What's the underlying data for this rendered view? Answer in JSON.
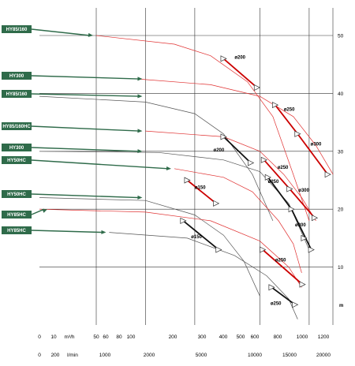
{
  "chart_data": {
    "type": "line",
    "title": "",
    "xlabel": "",
    "ylabel": "",
    "y_unit": "m",
    "x_unit_m3h": "m³/h",
    "x_unit_lmin": "l/min",
    "x_scale": "log",
    "xlim": [
      10,
      1400
    ],
    "ylim": [
      0,
      55
    ],
    "grid": true,
    "x_ticks_m3h": [
      "0",
      "10",
      "m³/h",
      "50",
      "60",
      "80",
      "100",
      "200",
      "300",
      "400",
      "500",
      "600",
      "800",
      "1000",
      "1200"
    ],
    "x_ticks_lmin": [
      "0",
      "200",
      "l/min",
      "1000",
      "2000",
      "5000",
      "10000",
      "15000",
      "20000"
    ],
    "y_ticks": [
      "10",
      "20",
      "30",
      "40",
      "50"
    ],
    "model_tags": [
      {
        "label": "HY85/160",
        "start_y": 50,
        "arrow_x": 50
      },
      {
        "label": "HY300",
        "start_y": 42.5,
        "arrow_x": 100
      },
      {
        "label": "HY85/160",
        "start_y": 39.5,
        "arrow_x": 100
      },
      {
        "label": "HY85/160HC",
        "start_y": 33.5,
        "arrow_x": 100
      },
      {
        "label": "HY300",
        "start_y": 30,
        "arrow_x": 100
      },
      {
        "label": "HY50HC",
        "start_y": 27,
        "arrow_x": 150
      },
      {
        "label": "HY50HC",
        "start_y": 22,
        "arrow_x": 100
      },
      {
        "label": "HY85HC",
        "start_y": 20,
        "arrow_x": 10
      },
      {
        "label": "HY85HC",
        "start_y": 16,
        "arrow_x": 60
      }
    ],
    "series": [
      {
        "color": "#e03030",
        "dim": "",
        "points": [
          [
            50,
            50
          ],
          [
            150,
            48.5
          ],
          [
            250,
            46.5
          ],
          [
            420,
            42
          ],
          [
            600,
            36
          ],
          [
            800,
            26
          ],
          [
            1000,
            18
          ]
        ]
      },
      {
        "color": "#e03030",
        "dim": "",
        "points": [
          [
            90,
            42.5
          ],
          [
            250,
            41.5
          ],
          [
            500,
            39.5
          ],
          [
            800,
            36
          ],
          [
            1100,
            31
          ],
          [
            1400,
            26
          ]
        ]
      },
      {
        "color": "#555555",
        "dim": "",
        "points": [
          [
            10,
            39.5
          ],
          [
            100,
            38.5
          ],
          [
            200,
            36.5
          ],
          [
            300,
            33
          ],
          [
            450,
            26
          ],
          [
            600,
            18
          ]
        ]
      },
      {
        "color": "#e03030",
        "dim": "",
        "points": [
          [
            100,
            33.5
          ],
          [
            300,
            32.5
          ],
          [
            500,
            30
          ],
          [
            700,
            26
          ],
          [
            900,
            22
          ],
          [
            1100,
            18
          ]
        ]
      },
      {
        "color": "#555555",
        "dim": "",
        "points": [
          [
            10,
            30
          ],
          [
            120,
            29.8
          ],
          [
            300,
            28.5
          ],
          [
            500,
            26.5
          ],
          [
            750,
            21
          ],
          [
            1000,
            13
          ]
        ]
      },
      {
        "color": "#e03030",
        "dim": "",
        "points": [
          [
            150,
            27
          ],
          [
            300,
            25.5
          ],
          [
            450,
            23
          ],
          [
            650,
            18
          ],
          [
            800,
            14
          ],
          [
            900,
            9
          ]
        ]
      },
      {
        "color": "#555555",
        "dim": "",
        "points": [
          [
            10,
            22
          ],
          [
            100,
            21.5
          ],
          [
            200,
            19
          ],
          [
            300,
            15.5
          ],
          [
            400,
            11
          ],
          [
            500,
            5
          ]
        ]
      },
      {
        "color": "#e03030",
        "dim": "",
        "points": [
          [
            10,
            20
          ],
          [
            100,
            19.5
          ],
          [
            250,
            18
          ],
          [
            500,
            14.5
          ],
          [
            750,
            10
          ],
          [
            900,
            6.5
          ]
        ]
      },
      {
        "color": "#555555",
        "dim": "",
        "points": [
          [
            60,
            16
          ],
          [
            180,
            15
          ],
          [
            350,
            12
          ],
          [
            550,
            8.5
          ],
          [
            750,
            4.5
          ],
          [
            850,
            1
          ]
        ]
      }
    ],
    "highlights": [
      {
        "color": "#cc0000",
        "points": [
          [
            300,
            46
          ],
          [
            480,
            41
          ]
        ]
      },
      {
        "color": "#cc0000",
        "points": [
          [
            620,
            38
          ],
          [
            850,
            33
          ],
          [
            1300,
            26
          ]
        ]
      },
      {
        "color": "#111111",
        "points": [
          [
            300,
            32.5
          ],
          [
            440,
            28
          ]
        ]
      },
      {
        "color": "#cc0000",
        "points": [
          [
            530,
            28.5
          ],
          [
            760,
            23.5
          ],
          [
            1080,
            18.5
          ]
        ]
      },
      {
        "color": "#111111",
        "points": [
          [
            560,
            25.5
          ],
          [
            780,
            20
          ],
          [
            1030,
            13
          ]
        ]
      },
      {
        "color": "#cc0000",
        "points": [
          [
            180,
            25
          ],
          [
            270,
            21
          ]
        ]
      },
      {
        "color": "#111111",
        "points": [
          [
            170,
            18
          ],
          [
            280,
            13
          ]
        ]
      },
      {
        "color": "#cc0000",
        "points": [
          [
            520,
            13
          ],
          [
            910,
            7
          ]
        ]
      },
      {
        "color": "#111111",
        "points": [
          [
            590,
            6.5
          ],
          [
            820,
            3.5
          ]
        ]
      }
    ],
    "markers": [
      [
        300,
        46
      ],
      [
        480,
        41
      ],
      [
        620,
        38
      ],
      [
        850,
        33
      ],
      [
        1300,
        26
      ],
      [
        300,
        32.5
      ],
      [
        440,
        28
      ],
      [
        530,
        28.5
      ],
      [
        760,
        23.5
      ],
      [
        1080,
        18.5
      ],
      [
        560,
        25.5
      ],
      [
        780,
        20
      ],
      [
        930,
        15
      ],
      [
        1030,
        13
      ],
      [
        180,
        25
      ],
      [
        270,
        21
      ],
      [
        170,
        18
      ],
      [
        280,
        13
      ],
      [
        520,
        13
      ],
      [
        910,
        7
      ],
      [
        590,
        6.5
      ],
      [
        820,
        3.5
      ]
    ],
    "annotations": [
      {
        "text": "ø200",
        "x": 350,
        "y": 46
      },
      {
        "text": "ø250",
        "x": 700,
        "y": 37
      },
      {
        "text": "ø300",
        "x": 1020,
        "y": 31
      },
      {
        "text": "ø200",
        "x": 260,
        "y": 30
      },
      {
        "text": "ø250",
        "x": 640,
        "y": 27
      },
      {
        "text": "ø250",
        "x": 560,
        "y": 24.5
      },
      {
        "text": "ø300",
        "x": 860,
        "y": 23
      },
      {
        "text": "ø300",
        "x": 820,
        "y": 17
      },
      {
        "text": "ø150",
        "x": 200,
        "y": 23.5
      },
      {
        "text": "ø150",
        "x": 190,
        "y": 15
      },
      {
        "text": "ø250",
        "x": 620,
        "y": 11
      },
      {
        "text": "ø250",
        "x": 580,
        "y": 3.5
      }
    ]
  }
}
